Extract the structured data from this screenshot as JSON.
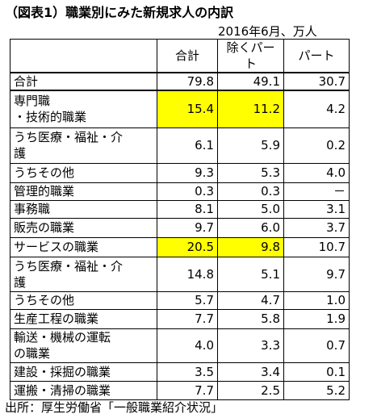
{
  "title": "（図表1）職業別にみた新規求人の内訳",
  "subtitle": "2016年6月、万人",
  "table": {
    "header": [
      "合計",
      "除くパート",
      "パート"
    ],
    "rows": [
      [
        "合計",
        "79.8",
        "49.1",
        "30.7"
      ],
      [
        "専門職\n・技術的職業",
        "15.4",
        "11.2",
        "4.2"
      ],
      [
        "うち医療・福祉・介\n護",
        "6.1",
        "5.9",
        "0.2"
      ],
      [
        "うちその他",
        "9.3",
        "5.3",
        "4.0"
      ],
      [
        "管理的職業",
        "0.3",
        "0.3",
        "－"
      ],
      [
        "事務職",
        "8.1",
        "5.0",
        "3.1"
      ],
      [
        "販売の職業",
        "9.7",
        "6.0",
        "3.7"
      ],
      [
        "サービスの職業",
        "20.5",
        "9.8",
        "10.7"
      ],
      [
        "うち医療・福祉・介\n護",
        "14.8",
        "5.1",
        "9.7"
      ],
      [
        "うちその他",
        "5.7",
        "4.7",
        "1.0"
      ],
      [
        "生産工程の職業",
        "7.7",
        "5.8",
        "1.9"
      ],
      [
        "輸送・機械の運転\nの職業",
        "4.0",
        "3.3",
        "0.7"
      ],
      [
        "建設・採掘の職業",
        "3.5",
        "3.4",
        "0.1"
      ],
      [
        "運搬・清掃の職業",
        "7.7",
        "2.5",
        "5.2"
      ]
    ]
  },
  "source": "出所：厚生労働省「一般職業紹介状況」"
}
